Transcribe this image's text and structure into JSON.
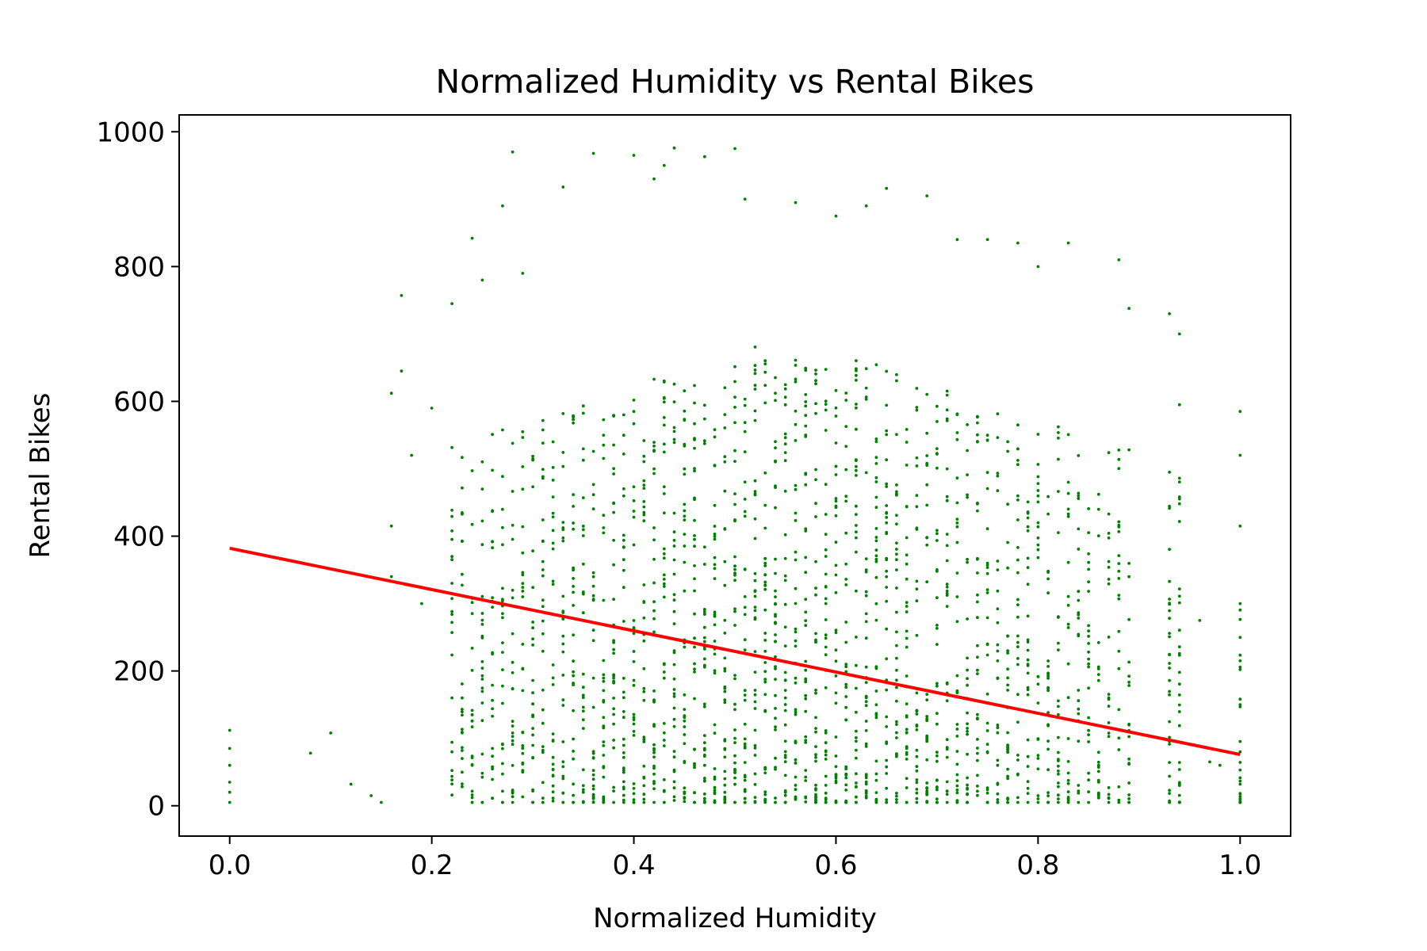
{
  "chart_data": {
    "type": "scatter",
    "title": "Normalized Humidity vs Rental Bikes",
    "xlabel": "Normalized Humidity",
    "ylabel": "Rental Bikes",
    "xlim": [
      -0.05,
      1.05
    ],
    "ylim": [
      -45,
      1025
    ],
    "xticks": [
      0.0,
      0.2,
      0.4,
      0.6,
      0.8,
      1.0
    ],
    "xtick_labels": [
      "0.0",
      "0.2",
      "0.4",
      "0.6",
      "0.8",
      "1.0"
    ],
    "yticks": [
      0,
      200,
      400,
      600,
      800,
      1000
    ],
    "ytick_labels": [
      "0",
      "200",
      "400",
      "600",
      "800",
      "1000"
    ],
    "grid": false,
    "legend": "none",
    "series": [
      {
        "kind": "scatter",
        "color": "#008000",
        "note_points": [
          [
            0.0,
            5
          ],
          [
            0.0,
            20
          ],
          [
            0.0,
            35
          ],
          [
            0.0,
            60
          ],
          [
            0.0,
            85
          ],
          [
            0.0,
            112
          ],
          [
            0.08,
            78
          ],
          [
            0.1,
            108
          ],
          [
            0.12,
            32
          ],
          [
            0.14,
            15
          ],
          [
            0.15,
            5
          ],
          [
            0.16,
            340
          ],
          [
            0.16,
            415
          ],
          [
            0.16,
            612
          ],
          [
            0.17,
            757
          ],
          [
            0.17,
            645
          ],
          [
            0.18,
            520
          ],
          [
            0.19,
            300
          ],
          [
            0.2,
            590
          ],
          [
            0.22,
            745
          ],
          [
            0.24,
            842
          ],
          [
            0.25,
            780
          ],
          [
            0.27,
            890
          ],
          [
            0.28,
            970
          ],
          [
            0.29,
            790
          ],
          [
            0.33,
            918
          ],
          [
            0.36,
            968
          ],
          [
            0.4,
            965
          ],
          [
            0.42,
            930
          ],
          [
            0.43,
            950
          ],
          [
            0.44,
            976
          ],
          [
            0.47,
            963
          ],
          [
            0.5,
            975
          ],
          [
            0.51,
            900
          ],
          [
            0.56,
            895
          ],
          [
            0.6,
            875
          ],
          [
            0.63,
            890
          ],
          [
            0.65,
            916
          ],
          [
            0.69,
            905
          ],
          [
            0.72,
            840
          ],
          [
            0.75,
            840
          ],
          [
            0.78,
            835
          ],
          [
            0.8,
            800
          ],
          [
            0.83,
            835
          ],
          [
            0.88,
            810
          ],
          [
            0.89,
            738
          ],
          [
            0.93,
            730
          ],
          [
            0.94,
            700
          ],
          [
            0.94,
            595
          ],
          [
            0.96,
            275
          ],
          [
            0.97,
            65
          ],
          [
            0.98,
            60
          ],
          [
            1.0,
            5
          ],
          [
            1.0,
            80
          ],
          [
            1.0,
            150
          ],
          [
            1.0,
            300
          ],
          [
            1.0,
            415
          ],
          [
            1.0,
            520
          ],
          [
            1.0,
            585
          ]
        ]
      },
      {
        "kind": "line",
        "color": "#ff0000",
        "x": [
          0.0,
          1.0
        ],
        "y": [
          382,
          76
        ]
      }
    ]
  }
}
